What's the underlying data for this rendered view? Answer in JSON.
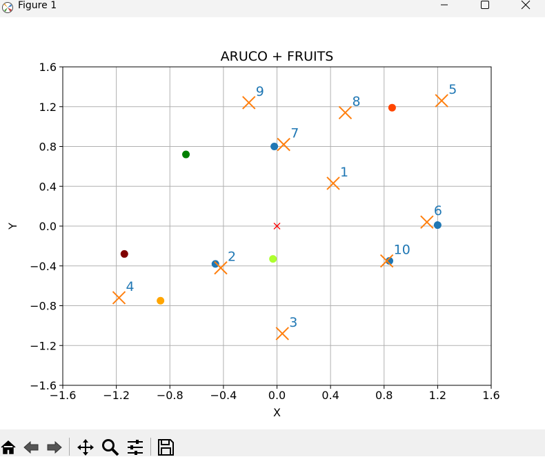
{
  "window": {
    "title": "Figure 1",
    "minimize_icon": "minimize-icon",
    "maximize_icon": "maximize-icon",
    "close_icon": "close-icon"
  },
  "toolbar": {
    "buttons": [
      "home-icon",
      "back-icon",
      "forward-icon",
      "pan-icon",
      "zoom-icon",
      "configure-subplots-icon",
      "save-icon"
    ]
  },
  "chart_data": {
    "type": "scatter",
    "title": "ARUCO + FRUITS",
    "xlabel": "X",
    "ylabel": "Y",
    "xlim": [
      -1.6,
      1.6
    ],
    "ylim": [
      -1.6,
      1.6
    ],
    "xticks": [
      -1.6,
      -1.2,
      -0.8,
      -0.4,
      0.0,
      0.4,
      0.8,
      1.2,
      1.6
    ],
    "yticks": [
      -1.6,
      -1.2,
      -0.8,
      -0.4,
      0.0,
      0.4,
      0.8,
      1.2,
      1.6
    ],
    "xtick_labels": [
      "−1.6",
      "−1.2",
      "−0.8",
      "−0.4",
      "0.0",
      "0.4",
      "0.8",
      "1.2",
      "1.6"
    ],
    "ytick_labels": [
      "−1.6",
      "−1.2",
      "−0.8",
      "−0.4",
      "0.0",
      "0.4",
      "0.8",
      "1.2",
      "1.6"
    ],
    "grid": true,
    "markers": {
      "marker": "x",
      "color": "#ff7f0e",
      "label_color": "#1f77b4",
      "points": [
        {
          "label": "1",
          "x": 0.42,
          "y": 0.43
        },
        {
          "label": "2",
          "x": -0.42,
          "y": -0.42
        },
        {
          "label": "3",
          "x": 0.04,
          "y": -1.08
        },
        {
          "label": "4",
          "x": -1.18,
          "y": -0.72
        },
        {
          "label": "5",
          "x": 1.23,
          "y": 1.26
        },
        {
          "label": "6",
          "x": 1.12,
          "y": 0.04
        },
        {
          "label": "7",
          "x": 0.05,
          "y": 0.82
        },
        {
          "label": "8",
          "x": 0.51,
          "y": 1.14
        },
        {
          "label": "9",
          "x": -0.21,
          "y": 1.24
        },
        {
          "label": "10",
          "x": 0.82,
          "y": -0.35
        }
      ]
    },
    "dots": [
      {
        "x": -0.02,
        "y": 0.8,
        "color": "#1f77b4"
      },
      {
        "x": 1.2,
        "y": 0.01,
        "color": "#1f77b4"
      },
      {
        "x": -0.46,
        "y": -0.38,
        "color": "#1f77b4"
      },
      {
        "x": 0.84,
        "y": -0.35,
        "color": "#1f77b4"
      },
      {
        "x": 0.86,
        "y": 1.19,
        "color": "#ff4500"
      },
      {
        "x": -0.68,
        "y": 0.72,
        "color": "#008000"
      },
      {
        "x": -1.14,
        "y": -0.28,
        "color": "#800000"
      },
      {
        "x": -0.87,
        "y": -0.75,
        "color": "#ffa500"
      },
      {
        "x": -0.03,
        "y": -0.33,
        "color": "#adff2f"
      }
    ],
    "origin": {
      "x": 0.0,
      "y": 0.0,
      "marker": "x",
      "color": "#ff0000"
    }
  }
}
